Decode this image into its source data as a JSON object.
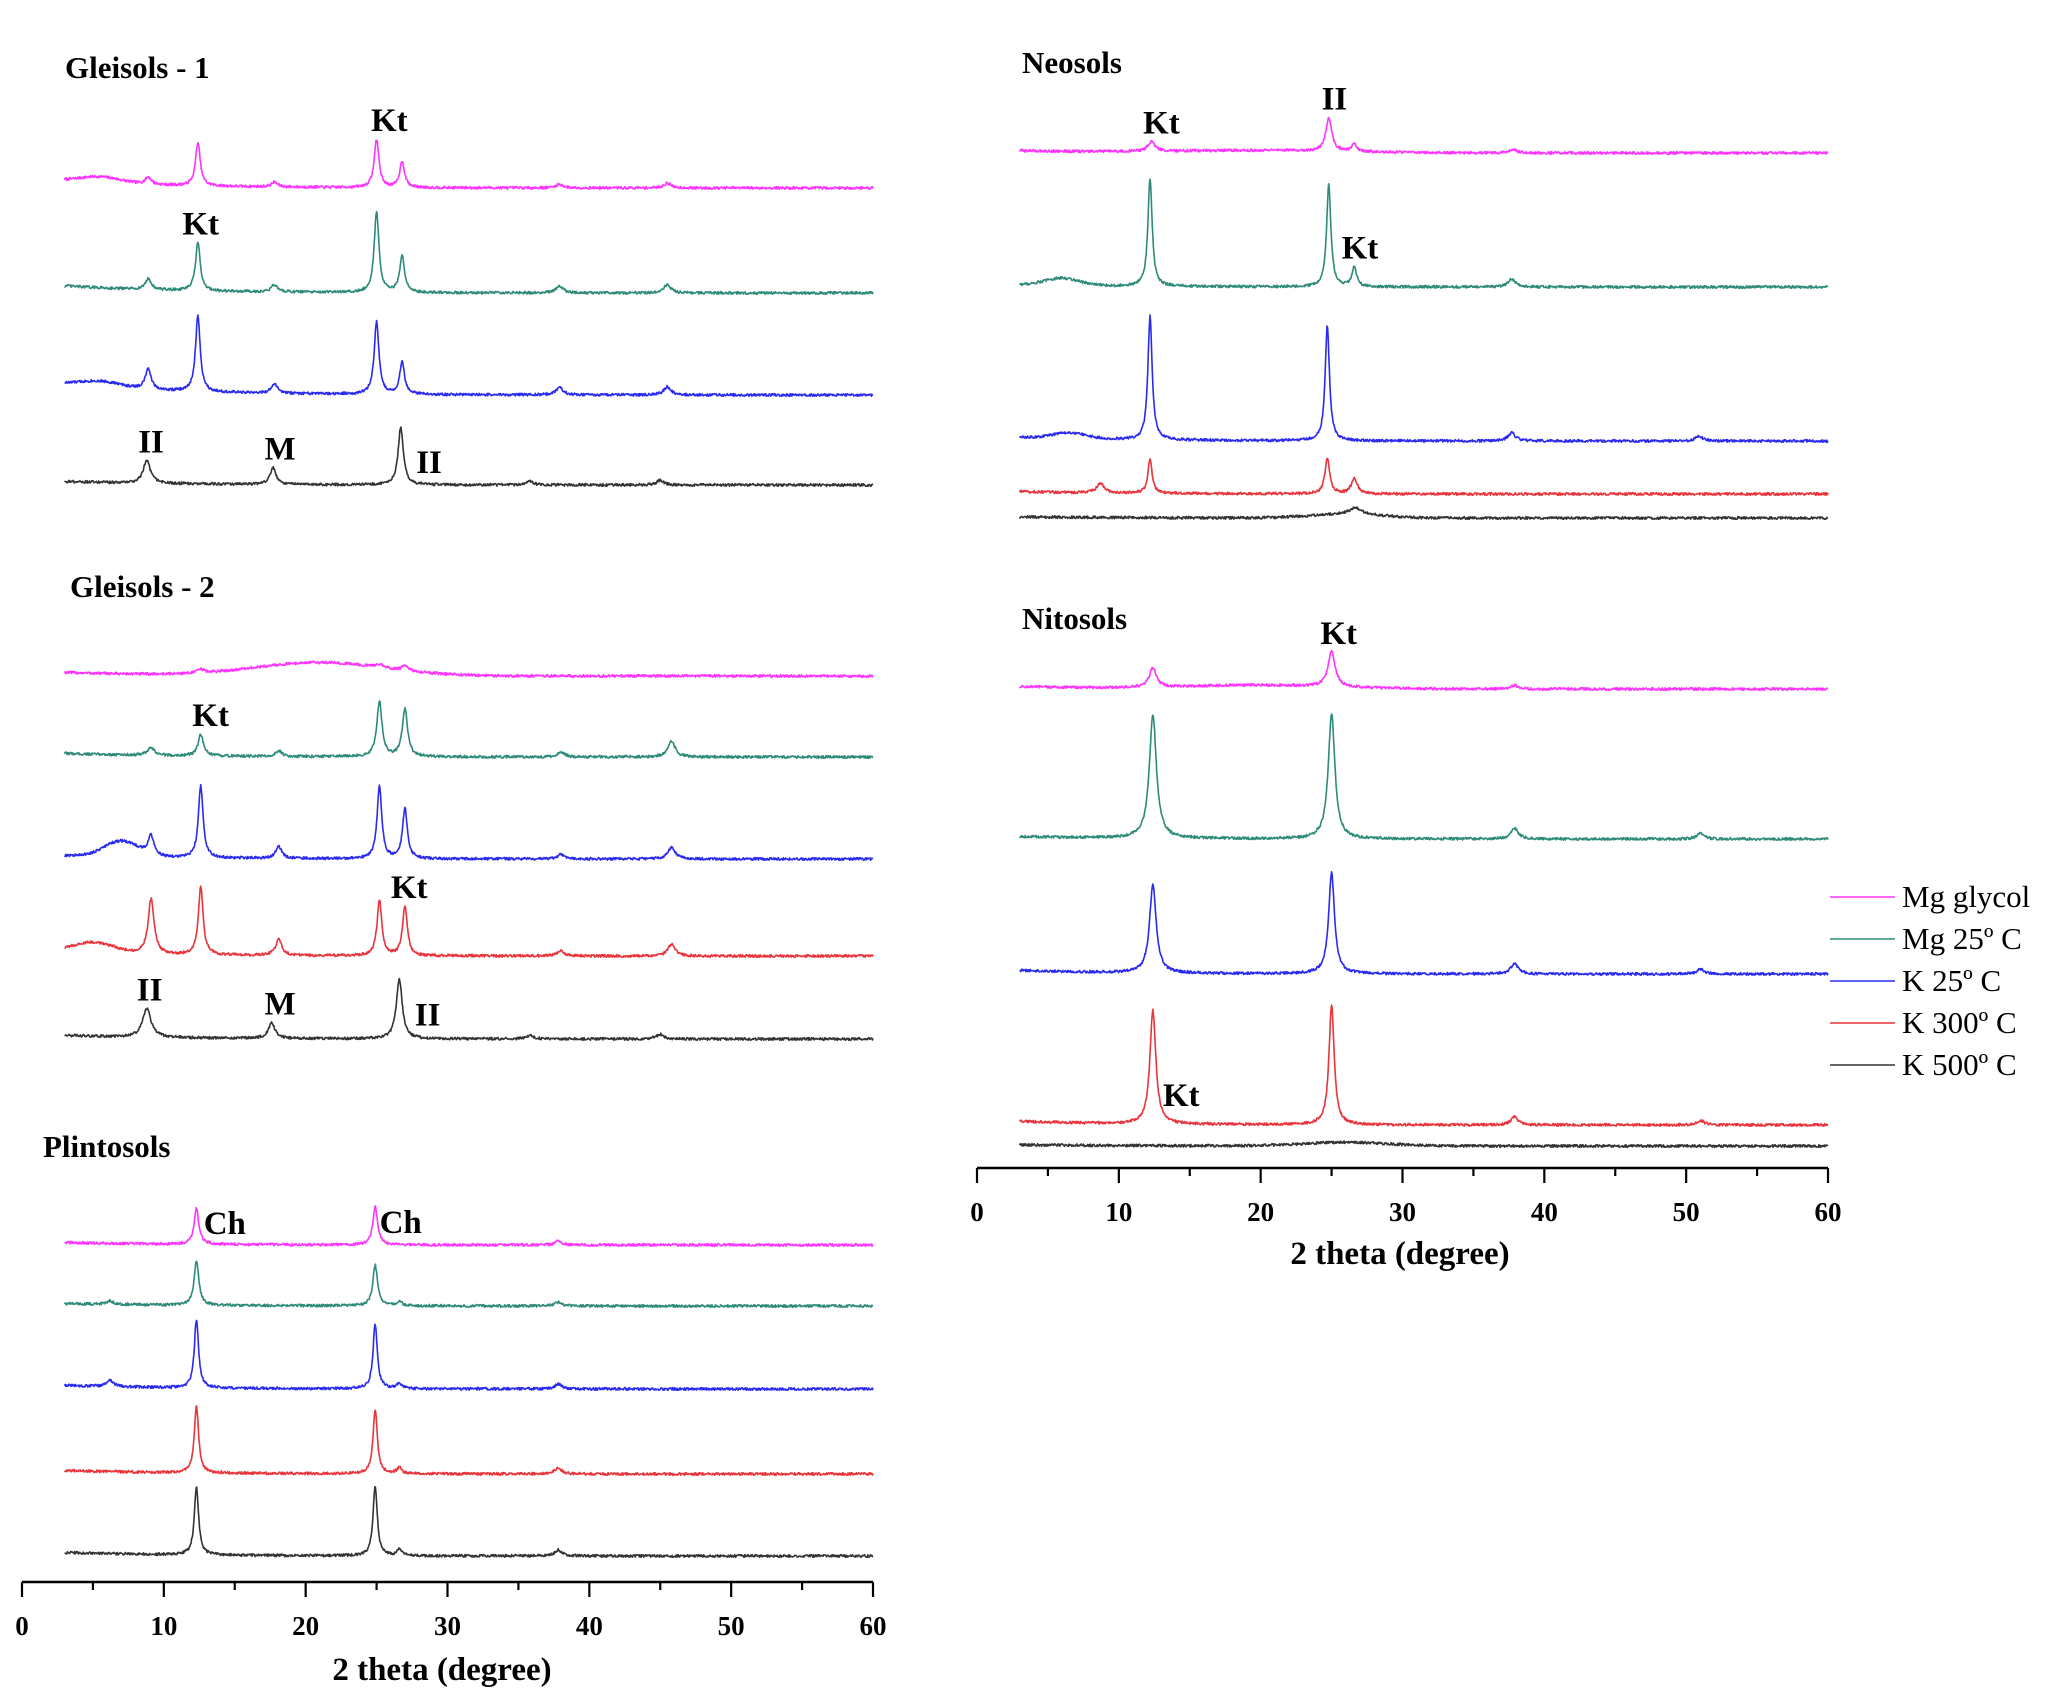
{
  "chart_data": {
    "type": "line",
    "xlabel": "2 theta (degree)",
    "xlim": [
      0,
      60
    ],
    "xticks": [
      0,
      10,
      20,
      30,
      40,
      50,
      60
    ],
    "series_names": [
      "Mg glycol",
      "Mg 25º C",
      "K 25º C",
      "K 300º C",
      "K 500º C"
    ],
    "colors": {
      "Mg glycol": "#ff33ff",
      "Mg 25º C": "#2e8b7a",
      "K 25º C": "#2a2af0",
      "K 300º C": "#e8343a",
      "K 500º C": "#333333"
    },
    "legend_position": "right",
    "panels": [
      {
        "id": "gleisols-1",
        "title": "Gleisols - 1",
        "series": [
          {
            "name": "Mg glycol",
            "background": 0.6,
            "broad": [
              {
                "x": 5.5,
                "h": 0.5,
                "w": 1.5
              }
            ],
            "peaks": [
              {
                "x": 8.9,
                "h": 0.6,
                "w": 0.25
              },
              {
                "x": 12.4,
                "h": 3.6,
                "w": 0.2
              },
              {
                "x": 17.8,
                "h": 0.4,
                "w": 0.25
              },
              {
                "x": 25.0,
                "h": 4.0,
                "w": 0.2
              },
              {
                "x": 26.8,
                "h": 2.2,
                "w": 0.2
              },
              {
                "x": 37.9,
                "h": 0.3,
                "w": 0.3
              },
              {
                "x": 45.5,
                "h": 0.4,
                "w": 0.3
              }
            ]
          },
          {
            "name": "Mg 25º C",
            "background": 0.6,
            "broad": [],
            "peaks": [
              {
                "x": 8.9,
                "h": 0.9,
                "w": 0.25
              },
              {
                "x": 12.4,
                "h": 4.0,
                "w": 0.2
              },
              {
                "x": 17.8,
                "h": 0.6,
                "w": 0.25
              },
              {
                "x": 25.0,
                "h": 6.7,
                "w": 0.2
              },
              {
                "x": 26.8,
                "h": 3.1,
                "w": 0.2
              },
              {
                "x": 37.9,
                "h": 0.6,
                "w": 0.3
              },
              {
                "x": 45.5,
                "h": 0.7,
                "w": 0.3
              }
            ]
          },
          {
            "name": "K 25º C",
            "background": 0.9,
            "broad": [
              {
                "x": 5.5,
                "h": 0.5,
                "w": 1.5
              }
            ],
            "peaks": [
              {
                "x": 8.9,
                "h": 1.7,
                "w": 0.25
              },
              {
                "x": 12.4,
                "h": 6.3,
                "w": 0.2
              },
              {
                "x": 17.8,
                "h": 0.8,
                "w": 0.25
              },
              {
                "x": 25.0,
                "h": 6.0,
                "w": 0.2
              },
              {
                "x": 26.8,
                "h": 2.7,
                "w": 0.2
              },
              {
                "x": 37.9,
                "h": 0.6,
                "w": 0.3
              },
              {
                "x": 45.5,
                "h": 0.7,
                "w": 0.3
              }
            ]
          },
          {
            "name": "K 500º C",
            "background": 0.3,
            "broad": [],
            "peaks": [
              {
                "x": 8.8,
                "h": 1.9,
                "w": 0.3
              },
              {
                "x": 17.7,
                "h": 1.4,
                "w": 0.25
              },
              {
                "x": 26.7,
                "h": 4.8,
                "w": 0.22
              },
              {
                "x": 35.8,
                "h": 0.3,
                "w": 0.3
              },
              {
                "x": 45.0,
                "h": 0.4,
                "w": 0.3
              }
            ]
          }
        ],
        "labels": [
          {
            "text": "Kt",
            "x": 25.9,
            "trace": 0
          },
          {
            "text": "Kt",
            "x": 12.6,
            "trace": 1
          },
          {
            "text": "II",
            "x": 9.1,
            "trace": 3
          },
          {
            "text": "M",
            "x": 18.2,
            "trace": 3
          },
          {
            "text": "II",
            "x": 28.7,
            "trace": 3
          }
        ]
      },
      {
        "id": "gleisols-2",
        "title": "Gleisols - 2",
        "series": [
          {
            "name": "Mg glycol",
            "background": 0.3,
            "broad": [
              {
                "x": 21,
                "h": 1.1,
                "w": 4.5
              }
            ],
            "peaks": [
              {
                "x": 12.6,
                "h": 0.3,
                "w": 0.3
              },
              {
                "x": 25.2,
                "h": 0.3,
                "w": 0.25
              },
              {
                "x": 27.0,
                "h": 0.4,
                "w": 0.25
              }
            ]
          },
          {
            "name": "Mg 25º C",
            "background": 0.3,
            "broad": [],
            "peaks": [
              {
                "x": 9.1,
                "h": 0.6,
                "w": 0.3
              },
              {
                "x": 12.6,
                "h": 1.8,
                "w": 0.22
              },
              {
                "x": 18.1,
                "h": 0.5,
                "w": 0.25
              },
              {
                "x": 25.2,
                "h": 4.6,
                "w": 0.22
              },
              {
                "x": 27.0,
                "h": 4.0,
                "w": 0.22
              },
              {
                "x": 38.0,
                "h": 0.4,
                "w": 0.3
              },
              {
                "x": 45.8,
                "h": 1.3,
                "w": 0.3
              }
            ]
          },
          {
            "name": "K 25º C",
            "background": 0.3,
            "broad": [
              {
                "x": 7.0,
                "h": 1.3,
                "w": 1.2
              }
            ],
            "peaks": [
              {
                "x": 9.1,
                "h": 1.6,
                "w": 0.25
              },
              {
                "x": 12.6,
                "h": 6.0,
                "w": 0.2
              },
              {
                "x": 18.1,
                "h": 1.0,
                "w": 0.25
              },
              {
                "x": 25.2,
                "h": 6.0,
                "w": 0.2
              },
              {
                "x": 27.0,
                "h": 4.2,
                "w": 0.2
              },
              {
                "x": 38.0,
                "h": 0.4,
                "w": 0.3
              },
              {
                "x": 45.8,
                "h": 1.0,
                "w": 0.3
              }
            ]
          },
          {
            "name": "K 300º C",
            "background": 0.3,
            "broad": [
              {
                "x": 5.0,
                "h": 0.9,
                "w": 1.5
              }
            ],
            "peaks": [
              {
                "x": 9.1,
                "h": 4.6,
                "w": 0.25
              },
              {
                "x": 12.6,
                "h": 5.7,
                "w": 0.2
              },
              {
                "x": 18.1,
                "h": 1.4,
                "w": 0.25
              },
              {
                "x": 25.2,
                "h": 4.6,
                "w": 0.2
              },
              {
                "x": 27.0,
                "h": 4.1,
                "w": 0.2
              },
              {
                "x": 38.0,
                "h": 0.4,
                "w": 0.3
              },
              {
                "x": 45.8,
                "h": 1.0,
                "w": 0.3
              }
            ]
          },
          {
            "name": "K 500º C",
            "background": 0.3,
            "broad": [],
            "peaks": [
              {
                "x": 8.8,
                "h": 2.4,
                "w": 0.35
              },
              {
                "x": 17.6,
                "h": 1.3,
                "w": 0.28
              },
              {
                "x": 26.6,
                "h": 5.0,
                "w": 0.25
              },
              {
                "x": 35.8,
                "h": 0.3,
                "w": 0.3
              },
              {
                "x": 45.0,
                "h": 0.4,
                "w": 0.3
              }
            ]
          }
        ],
        "labels": [
          {
            "text": "Kt",
            "x": 13.3,
            "trace": 1
          },
          {
            "text": "Kt",
            "x": 27.3,
            "trace": 3
          },
          {
            "text": "II",
            "x": 9.0,
            "trace": 4
          },
          {
            "text": "M",
            "x": 18.2,
            "trace": 4
          },
          {
            "text": "II",
            "x": 28.6,
            "trace": 4
          }
        ]
      },
      {
        "id": "plintosols",
        "title": "Plintosols",
        "series": [
          {
            "name": "Mg glycol",
            "background": 0.2,
            "broad": [],
            "peaks": [
              {
                "x": 12.3,
                "h": 3.0,
                "w": 0.2
              },
              {
                "x": 24.9,
                "h": 3.2,
                "w": 0.2
              },
              {
                "x": 37.8,
                "h": 0.3,
                "w": 0.3
              }
            ]
          },
          {
            "name": "Mg 25º C",
            "background": 0.2,
            "broad": [],
            "peaks": [
              {
                "x": 6.2,
                "h": 0.3,
                "w": 0.3
              },
              {
                "x": 12.3,
                "h": 3.7,
                "w": 0.2
              },
              {
                "x": 24.9,
                "h": 3.4,
                "w": 0.2
              },
              {
                "x": 26.6,
                "h": 0.4,
                "w": 0.2
              },
              {
                "x": 37.8,
                "h": 0.3,
                "w": 0.3
              }
            ]
          },
          {
            "name": "K 25º C",
            "background": 0.3,
            "broad": [],
            "peaks": [
              {
                "x": 6.2,
                "h": 0.5,
                "w": 0.3
              },
              {
                "x": 12.3,
                "h": 5.7,
                "w": 0.18
              },
              {
                "x": 24.9,
                "h": 5.4,
                "w": 0.18
              },
              {
                "x": 26.6,
                "h": 0.5,
                "w": 0.2
              },
              {
                "x": 37.8,
                "h": 0.4,
                "w": 0.3
              }
            ]
          },
          {
            "name": "K 300º C",
            "background": 0.3,
            "broad": [],
            "peaks": [
              {
                "x": 12.3,
                "h": 5.6,
                "w": 0.18
              },
              {
                "x": 24.9,
                "h": 5.4,
                "w": 0.18
              },
              {
                "x": 26.6,
                "h": 0.5,
                "w": 0.2
              },
              {
                "x": 37.8,
                "h": 0.5,
                "w": 0.3
              }
            ]
          },
          {
            "name": "K 500º C",
            "background": 0.3,
            "broad": [],
            "peaks": [
              {
                "x": 12.3,
                "h": 5.7,
                "w": 0.18
              },
              {
                "x": 24.9,
                "h": 5.8,
                "w": 0.18
              },
              {
                "x": 26.6,
                "h": 0.5,
                "w": 0.2
              },
              {
                "x": 37.8,
                "h": 0.5,
                "w": 0.3
              }
            ]
          }
        ],
        "labels": [
          {
            "text": "Ch",
            "x": 14.3,
            "trace": 0
          },
          {
            "text": "Ch",
            "x": 26.7,
            "trace": 0
          }
        ]
      },
      {
        "id": "neosols",
        "title": "Neosols",
        "series": [
          {
            "name": "Mg glycol",
            "background": 0.2,
            "broad": [
              {
                "x": 20,
                "h": 0.2,
                "w": 6
              }
            ],
            "peaks": [
              {
                "x": 12.3,
                "h": 0.8,
                "w": 0.3
              },
              {
                "x": 24.8,
                "h": 2.8,
                "w": 0.25
              },
              {
                "x": 26.6,
                "h": 0.6,
                "w": 0.2
              },
              {
                "x": 37.8,
                "h": 0.3,
                "w": 0.3
              }
            ]
          },
          {
            "name": "Mg 25º C",
            "background": 0.2,
            "broad": [
              {
                "x": 6.0,
                "h": 0.6,
                "w": 1.2
              }
            ],
            "peaks": [
              {
                "x": 12.2,
                "h": 9.0,
                "w": 0.18
              },
              {
                "x": 24.8,
                "h": 8.5,
                "w": 0.18
              },
              {
                "x": 26.6,
                "h": 1.6,
                "w": 0.2
              },
              {
                "x": 37.7,
                "h": 0.7,
                "w": 0.3
              }
            ]
          },
          {
            "name": "K 25º C",
            "background": 0.3,
            "broad": [
              {
                "x": 6.5,
                "h": 0.5,
                "w": 1.2
              }
            ],
            "peaks": [
              {
                "x": 12.2,
                "h": 10.3,
                "w": 0.18
              },
              {
                "x": 24.7,
                "h": 9.6,
                "w": 0.18
              },
              {
                "x": 37.7,
                "h": 0.7,
                "w": 0.3
              },
              {
                "x": 50.9,
                "h": 0.4,
                "w": 0.3
              }
            ]
          },
          {
            "name": "K 300º C",
            "background": 0.2,
            "broad": [],
            "peaks": [
              {
                "x": 8.7,
                "h": 0.8,
                "w": 0.3
              },
              {
                "x": 12.2,
                "h": 2.8,
                "w": 0.18
              },
              {
                "x": 24.7,
                "h": 3.0,
                "w": 0.2
              },
              {
                "x": 26.6,
                "h": 1.3,
                "w": 0.25
              }
            ]
          },
          {
            "name": "K 500º C",
            "background": 0.1,
            "broad": [
              {
                "x": 26,
                "h": 0.3,
                "w": 2.5
              }
            ],
            "peaks": [
              {
                "x": 26.7,
                "h": 0.6,
                "w": 0.5
              }
            ]
          }
        ],
        "labels": [
          {
            "text": "Kt",
            "x": 13.0,
            "trace": 0
          },
          {
            "text": "II",
            "x": 25.2,
            "trace": 0
          },
          {
            "text": "Kt",
            "x": 27.0,
            "trace": 1
          }
        ]
      },
      {
        "id": "nitosols",
        "title": "Nitosols",
        "series": [
          {
            "name": "Mg glycol",
            "background": 0.2,
            "broad": [
              {
                "x": 20,
                "h": 0.3,
                "w": 5
              }
            ],
            "peaks": [
              {
                "x": 12.4,
                "h": 1.6,
                "w": 0.3
              },
              {
                "x": 25.0,
                "h": 2.9,
                "w": 0.3
              },
              {
                "x": 37.9,
                "h": 0.3,
                "w": 0.3
              }
            ]
          },
          {
            "name": "Mg 25º C",
            "background": 0.2,
            "broad": [],
            "peaks": [
              {
                "x": 12.4,
                "h": 10.3,
                "w": 0.3
              },
              {
                "x": 25.0,
                "h": 10.4,
                "w": 0.28
              },
              {
                "x": 37.9,
                "h": 0.9,
                "w": 0.3
              },
              {
                "x": 51.0,
                "h": 0.5,
                "w": 0.3
              }
            ]
          },
          {
            "name": "K 25º C",
            "background": 0.3,
            "broad": [],
            "peaks": [
              {
                "x": 12.4,
                "h": 7.4,
                "w": 0.28
              },
              {
                "x": 25.0,
                "h": 8.4,
                "w": 0.25
              },
              {
                "x": 37.9,
                "h": 0.9,
                "w": 0.3
              },
              {
                "x": 51.0,
                "h": 0.4,
                "w": 0.3
              }
            ]
          },
          {
            "name": "K 300º C",
            "background": 0.3,
            "broad": [],
            "peaks": [
              {
                "x": 12.4,
                "h": 9.5,
                "w": 0.25
              },
              {
                "x": 25.0,
                "h": 10.0,
                "w": 0.22
              },
              {
                "x": 37.9,
                "h": 0.7,
                "w": 0.3
              },
              {
                "x": 51.0,
                "h": 0.4,
                "w": 0.3
              }
            ]
          },
          {
            "name": "K 500º C",
            "background": 0.1,
            "broad": [
              {
                "x": 26,
                "h": 0.3,
                "w": 3
              }
            ],
            "peaks": []
          }
        ],
        "labels": [
          {
            "text": "Kt",
            "x": 25.5,
            "trace": 0
          },
          {
            "text": "Kt",
            "x": 14.4,
            "trace": 3
          }
        ]
      }
    ]
  }
}
